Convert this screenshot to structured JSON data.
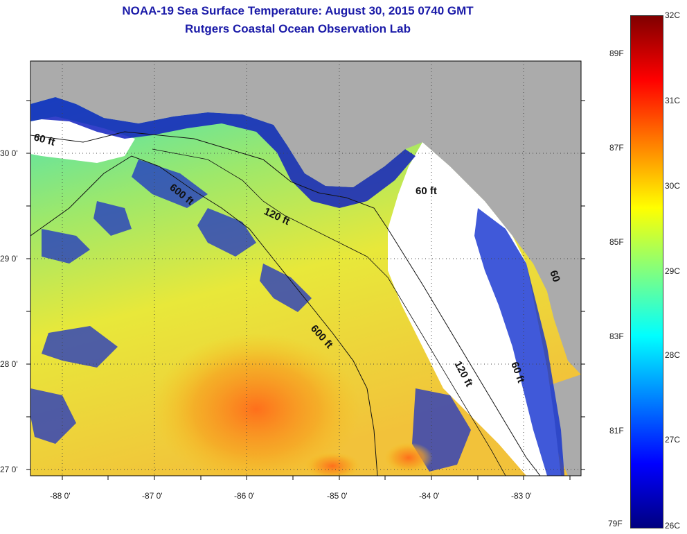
{
  "header": {
    "title": "NOAA-19 Sea Surface Temperature:  August 30, 2015 0740 GMT",
    "subtitle": "Rutgers Coastal Ocean Observation Lab"
  },
  "map": {
    "longitude_labels": [
      "-88 0'",
      "-87 0'",
      "-86 0'",
      "-85 0'",
      "-84 0'",
      "-83 0'"
    ],
    "latitude_labels": [
      "30 0'",
      "29 0'",
      "28 0'",
      "27 0'"
    ],
    "contour_labels": [
      "60 ft",
      "600 ft",
      "120 ft",
      "60 ft",
      "600 ft",
      "120 ft",
      "60 ft",
      "60"
    ],
    "colors": {
      "land": "#ababab",
      "no_data": "#ffffff",
      "grid": "#555555"
    }
  },
  "colorbar": {
    "celsius_labels": [
      "32C",
      "31C",
      "30C",
      "29C",
      "28C",
      "27C",
      "26C"
    ],
    "fahrenheit_labels": [
      "89F",
      "87F",
      "85F",
      "83F",
      "81F",
      "79F"
    ],
    "range_c": [
      26,
      32
    ],
    "stops": [
      "#000080",
      "#0000ff",
      "#0080ff",
      "#00ffff",
      "#80ff80",
      "#ffff00",
      "#ff8000",
      "#ff0000",
      "#800000"
    ]
  }
}
